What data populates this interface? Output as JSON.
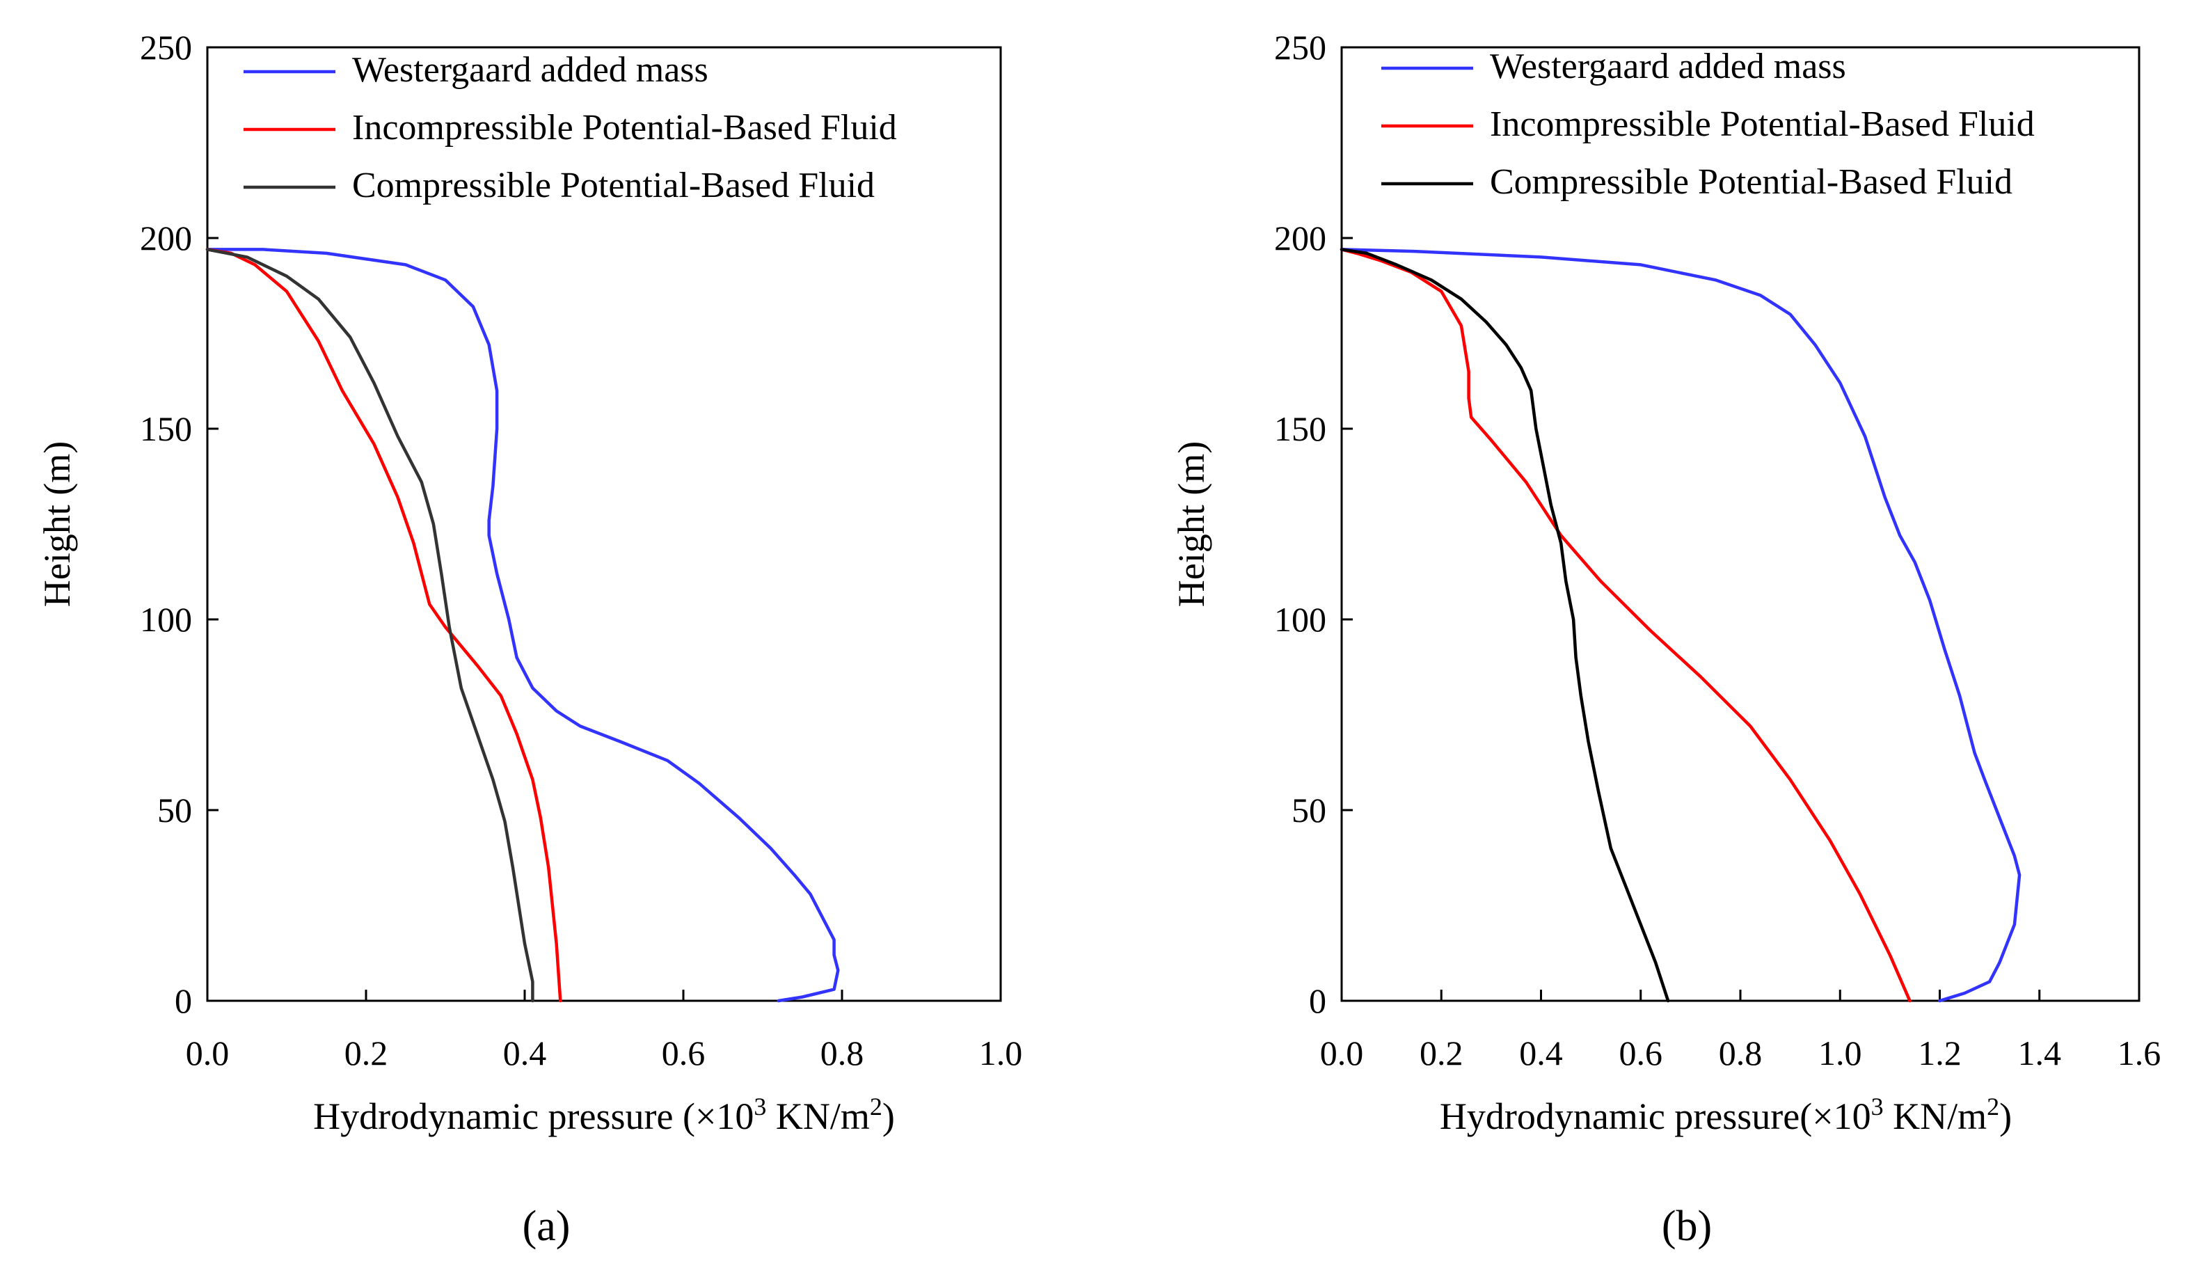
{
  "chart_data": [
    {
      "type": "line",
      "panel_label": "(a)",
      "xlabel": "Hydrodynamic pressure (×10³ KN/m²)",
      "xlabel_main": "Hydrodynamic pressure (×10",
      "xlabel_mid": " KN/m",
      "xlabel_end": ")",
      "xlabel_exp1": "3",
      "xlabel_exp2": "2",
      "ylabel": "Height  (m)",
      "xlim": [
        0,
        1.0
      ],
      "ylim": [
        0,
        250
      ],
      "xticks": [
        0.0,
        0.2,
        0.4,
        0.6,
        0.8,
        1.0
      ],
      "xtick_labels": [
        "0.0",
        "0.2",
        "0.4",
        "0.6",
        "0.8",
        "1.0"
      ],
      "yticks": [
        0,
        50,
        100,
        150,
        200,
        250
      ],
      "ytick_labels": [
        "0",
        "50",
        "100",
        "150",
        "200",
        "250"
      ],
      "grid": false,
      "legend_position": "top-right",
      "series": [
        {
          "name": "Westergaard added mass",
          "color": "#3333ff",
          "points": [
            [
              0.72,
              0
            ],
            [
              0.75,
              1
            ],
            [
              0.79,
              3
            ],
            [
              0.795,
              8
            ],
            [
              0.79,
              12
            ],
            [
              0.79,
              16
            ],
            [
              0.78,
              20
            ],
            [
              0.76,
              28
            ],
            [
              0.74,
              33
            ],
            [
              0.71,
              40
            ],
            [
              0.67,
              48
            ],
            [
              0.62,
              57
            ],
            [
              0.58,
              63
            ],
            [
              0.52,
              68
            ],
            [
              0.47,
              72
            ],
            [
              0.44,
              76
            ],
            [
              0.41,
              82
            ],
            [
              0.39,
              90
            ],
            [
              0.38,
              100
            ],
            [
              0.365,
              112
            ],
            [
              0.355,
              122
            ],
            [
              0.355,
              126
            ],
            [
              0.36,
              135
            ],
            [
              0.365,
              150
            ],
            [
              0.365,
              160
            ],
            [
              0.355,
              172
            ],
            [
              0.335,
              182
            ],
            [
              0.3,
              189
            ],
            [
              0.25,
              193
            ],
            [
              0.15,
              196
            ],
            [
              0.07,
              197
            ],
            [
              0,
              197
            ]
          ]
        },
        {
          "name": "Incompressible Potential-Based Fluid",
          "color": "#ff0000",
          "points": [
            [
              0.445,
              0
            ],
            [
              0.44,
              15
            ],
            [
              0.43,
              35
            ],
            [
              0.42,
              48
            ],
            [
              0.41,
              58
            ],
            [
              0.39,
              70
            ],
            [
              0.37,
              80
            ],
            [
              0.34,
              88
            ],
            [
              0.3,
              98
            ],
            [
              0.28,
              104
            ],
            [
              0.26,
              120
            ],
            [
              0.24,
              132
            ],
            [
              0.21,
              146
            ],
            [
              0.17,
              160
            ],
            [
              0.14,
              173
            ],
            [
              0.1,
              186
            ],
            [
              0.06,
              193
            ],
            [
              0.03,
              196
            ],
            [
              0,
              197
            ]
          ]
        },
        {
          "name": "Compressible Potential-Based Fluid",
          "color": "#333333",
          "points": [
            [
              0.41,
              0
            ],
            [
              0.41,
              5
            ],
            [
              0.4,
              15
            ],
            [
              0.385,
              35
            ],
            [
              0.375,
              47
            ],
            [
              0.36,
              58
            ],
            [
              0.34,
              70
            ],
            [
              0.32,
              82
            ],
            [
              0.305,
              98
            ],
            [
              0.295,
              112
            ],
            [
              0.285,
              125
            ],
            [
              0.27,
              136
            ],
            [
              0.24,
              148
            ],
            [
              0.21,
              162
            ],
            [
              0.18,
              174
            ],
            [
              0.14,
              184
            ],
            [
              0.1,
              190
            ],
            [
              0.05,
              195
            ],
            [
              0,
              197
            ]
          ]
        }
      ]
    },
    {
      "type": "line",
      "panel_label": "(b)",
      "xlabel": "Hydrodynamic pressure(×10³ KN/m²)",
      "xlabel_main": "Hydrodynamic pressure(×10",
      "xlabel_mid": " KN/m",
      "xlabel_end": ")",
      "xlabel_exp1": "3",
      "xlabel_exp2": "2",
      "ylabel": "Height  (m)",
      "xlim": [
        0,
        1.6
      ],
      "ylim": [
        0,
        250
      ],
      "xticks": [
        0.0,
        0.2,
        0.4,
        0.6,
        0.8,
        1.0,
        1.2,
        1.4,
        1.6
      ],
      "xtick_labels": [
        "0.0",
        "0.2",
        "0.4",
        "0.6",
        "0.8",
        "1.0",
        "1.2",
        "1.4",
        "1.6"
      ],
      "yticks": [
        0,
        50,
        100,
        150,
        200,
        250
      ],
      "ytick_labels": [
        "0",
        "50",
        "100",
        "150",
        "200",
        "250"
      ],
      "grid": false,
      "legend_position": "top-right",
      "series": [
        {
          "name": "Westergaard added mass",
          "color": "#3333ff",
          "points": [
            [
              1.2,
              0
            ],
            [
              1.25,
              2
            ],
            [
              1.3,
              5
            ],
            [
              1.32,
              10
            ],
            [
              1.35,
              20
            ],
            [
              1.36,
              33
            ],
            [
              1.35,
              38
            ],
            [
              1.32,
              48
            ],
            [
              1.29,
              58
            ],
            [
              1.27,
              65
            ],
            [
              1.24,
              80
            ],
            [
              1.21,
              92
            ],
            [
              1.18,
              105
            ],
            [
              1.15,
              115
            ],
            [
              1.12,
              122
            ],
            [
              1.09,
              132
            ],
            [
              1.05,
              148
            ],
            [
              1.0,
              162
            ],
            [
              0.95,
              172
            ],
            [
              0.9,
              180
            ],
            [
              0.84,
              185
            ],
            [
              0.75,
              189
            ],
            [
              0.6,
              193
            ],
            [
              0.4,
              195
            ],
            [
              0.15,
              196.5
            ],
            [
              0,
              197
            ]
          ]
        },
        {
          "name": "Incompressible Potential-Based Fluid",
          "color": "#ff0000",
          "points": [
            [
              1.14,
              0
            ],
            [
              1.1,
              12
            ],
            [
              1.04,
              28
            ],
            [
              0.98,
              42
            ],
            [
              0.9,
              58
            ],
            [
              0.82,
              72
            ],
            [
              0.72,
              85
            ],
            [
              0.62,
              97
            ],
            [
              0.52,
              110
            ],
            [
              0.44,
              122
            ],
            [
              0.37,
              136
            ],
            [
              0.3,
              147
            ],
            [
              0.26,
              153
            ],
            [
              0.255,
              158
            ],
            [
              0.255,
              165
            ],
            [
              0.24,
              177
            ],
            [
              0.2,
              186
            ],
            [
              0.14,
              191
            ],
            [
              0.08,
              194
            ],
            [
              0.03,
              196
            ],
            [
              0,
              197
            ]
          ]
        },
        {
          "name": "Compressible Potential-Based Fluid",
          "color": "#000000",
          "points": [
            [
              0.655,
              0
            ],
            [
              0.63,
              10
            ],
            [
              0.6,
              20
            ],
            [
              0.57,
              30
            ],
            [
              0.54,
              40
            ],
            [
              0.515,
              55
            ],
            [
              0.495,
              68
            ],
            [
              0.48,
              80
            ],
            [
              0.47,
              90
            ],
            [
              0.465,
              100
            ],
            [
              0.45,
              110
            ],
            [
              0.44,
              120
            ],
            [
              0.42,
              130
            ],
            [
              0.405,
              140
            ],
            [
              0.39,
              150
            ],
            [
              0.38,
              160
            ],
            [
              0.36,
              166
            ],
            [
              0.33,
              172
            ],
            [
              0.29,
              178
            ],
            [
              0.24,
              184
            ],
            [
              0.18,
              189
            ],
            [
              0.11,
              193
            ],
            [
              0.05,
              196
            ],
            [
              0,
              197
            ]
          ]
        }
      ]
    }
  ]
}
